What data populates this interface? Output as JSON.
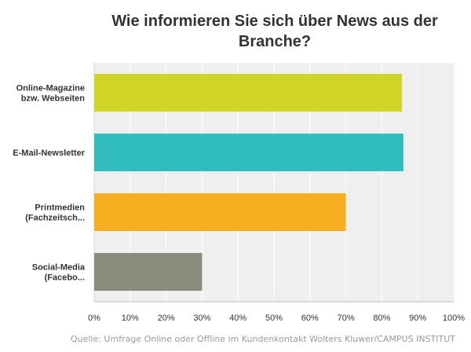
{
  "chart_data": {
    "type": "bar",
    "orientation": "horizontal",
    "title": "Wie informieren Sie sich über News aus der Branche?",
    "categories": [
      [
        "Online-Magazine",
        "bzw. Webseiten"
      ],
      [
        "E-Mail-Newsletter"
      ],
      [
        "Printmedien",
        "(Fachzeitsch..."
      ],
      [
        "Social-Media",
        "(Facebo..."
      ]
    ],
    "values": [
      85.6,
      86.0,
      70.0,
      30.0
    ],
    "colors": [
      "#cfd427",
      "#32bdbd",
      "#f7ae20",
      "#8b8b7b"
    ],
    "xlim": [
      0,
      100
    ],
    "xticks": [
      "0%",
      "10%",
      "20%",
      "30%",
      "40%",
      "50%",
      "60%",
      "70%",
      "80%",
      "90%",
      "100%"
    ],
    "grid": true,
    "source": "Quelle: Umfrage Online oder Offline im Kundenkontakt Wolters Kluwer/CAMPUS INSTITUT"
  }
}
